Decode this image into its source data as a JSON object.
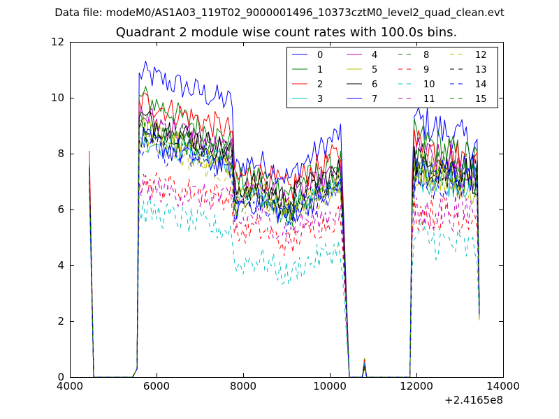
{
  "chart_data": {
    "type": "line",
    "suptitle": "Data file: modeM0/AS1A03_119T02_9000001496_10373cztM0_level2_quad_clean.evt",
    "title": "Quadrant 2 module wise count rates with 100.0s bins.",
    "xlabel": "",
    "ylabel": "",
    "x_offset_label": "+2.4165e8",
    "xlim": [
      4000,
      14000
    ],
    "ylim": [
      0,
      12
    ],
    "x_ticks": [
      "4000",
      "6000",
      "8000",
      "10000",
      "12000",
      "14000"
    ],
    "y_ticks": [
      "0",
      "2",
      "4",
      "6",
      "8",
      "10",
      "12"
    ],
    "x_tick_values": [
      4000,
      6000,
      8000,
      10000,
      12000,
      14000
    ],
    "y_tick_values": [
      0,
      2,
      4,
      6,
      8,
      10,
      12
    ],
    "legend_location": "upper right",
    "segments": [
      {
        "start": 4400,
        "end": 5600,
        "shape": "spike_then_gap"
      },
      {
        "start": 5600,
        "end": 10300,
        "shape": "decay_dip"
      },
      {
        "start": 10700,
        "end": 10900,
        "shape": "blip"
      },
      {
        "start": 11900,
        "end": 13400,
        "shape": "flat_decline"
      }
    ],
    "series": [
      {
        "name": "0",
        "color": "#0000ff",
        "dash": "solid",
        "init": 7.6,
        "level": 10.9,
        "mid": 9.8,
        "dip": 7.4,
        "end": 8.3
      },
      {
        "name": "1",
        "color": "#008000",
        "dash": "solid",
        "init": 7.6,
        "level": 10.1,
        "mid": 8.3,
        "dip": 6.9,
        "end": 7.7
      },
      {
        "name": "2",
        "color": "#ff0000",
        "dash": "solid",
        "init": 8.1,
        "level": 9.9,
        "mid": 8.8,
        "dip": 7.0,
        "end": 7.6
      },
      {
        "name": "3",
        "color": "#00bfbf",
        "dash": "solid",
        "init": 7.2,
        "level": 8.6,
        "mid": 7.6,
        "dip": 6.2,
        "end": 7.0
      },
      {
        "name": "4",
        "color": "#bf00bf",
        "dash": "solid",
        "init": 7.4,
        "level": 9.4,
        "mid": 8.0,
        "dip": 6.5,
        "end": 7.2
      },
      {
        "name": "5",
        "color": "#bfbf00",
        "dash": "solid",
        "init": 7.3,
        "level": 9.0,
        "mid": 7.4,
        "dip": 6.3,
        "end": 6.8
      },
      {
        "name": "6",
        "color": "#000000",
        "dash": "solid",
        "init": 7.5,
        "level": 9.3,
        "mid": 8.0,
        "dip": 6.6,
        "end": 7.2
      },
      {
        "name": "7",
        "color": "#0000ff",
        "dash": "solid",
        "init": 7.0,
        "level": 8.5,
        "mid": 7.5,
        "dip": 6.0,
        "end": 7.4
      },
      {
        "name": "8",
        "color": "#008000",
        "dash": "dashed",
        "init": 7.1,
        "level": 8.9,
        "mid": 7.8,
        "dip": 6.0,
        "end": 7.3
      },
      {
        "name": "9",
        "color": "#ff0000",
        "dash": "dashed",
        "init": 6.8,
        "level": 7.0,
        "mid": 6.4,
        "dip": 5.0,
        "end": 5.8
      },
      {
        "name": "10",
        "color": "#00bfbf",
        "dash": "dashed",
        "init": 6.5,
        "level": 6.0,
        "mid": 5.2,
        "dip": 3.9,
        "end": 4.5
      },
      {
        "name": "11",
        "color": "#bf00bf",
        "dash": "dashed",
        "init": 6.9,
        "level": 6.8,
        "mid": 6.3,
        "dip": 5.4,
        "end": 6.0
      },
      {
        "name": "12",
        "color": "#bfbf00",
        "dash": "dashed",
        "init": 7.2,
        "level": 8.6,
        "mid": 7.2,
        "dip": 6.1,
        "end": 6.9
      },
      {
        "name": "13",
        "color": "#000000",
        "dash": "dashed",
        "init": 7.3,
        "level": 8.9,
        "mid": 7.9,
        "dip": 6.3,
        "end": 7.3
      },
      {
        "name": "14",
        "color": "#0000ff",
        "dash": "dashed",
        "init": 7.1,
        "level": 8.2,
        "mid": 7.5,
        "dip": 5.9,
        "end": 6.9
      },
      {
        "name": "15",
        "color": "#008000",
        "dash": "dashed",
        "init": 7.2,
        "level": 9.1,
        "mid": 7.9,
        "dip": 6.2,
        "end": 7.0
      }
    ]
  }
}
